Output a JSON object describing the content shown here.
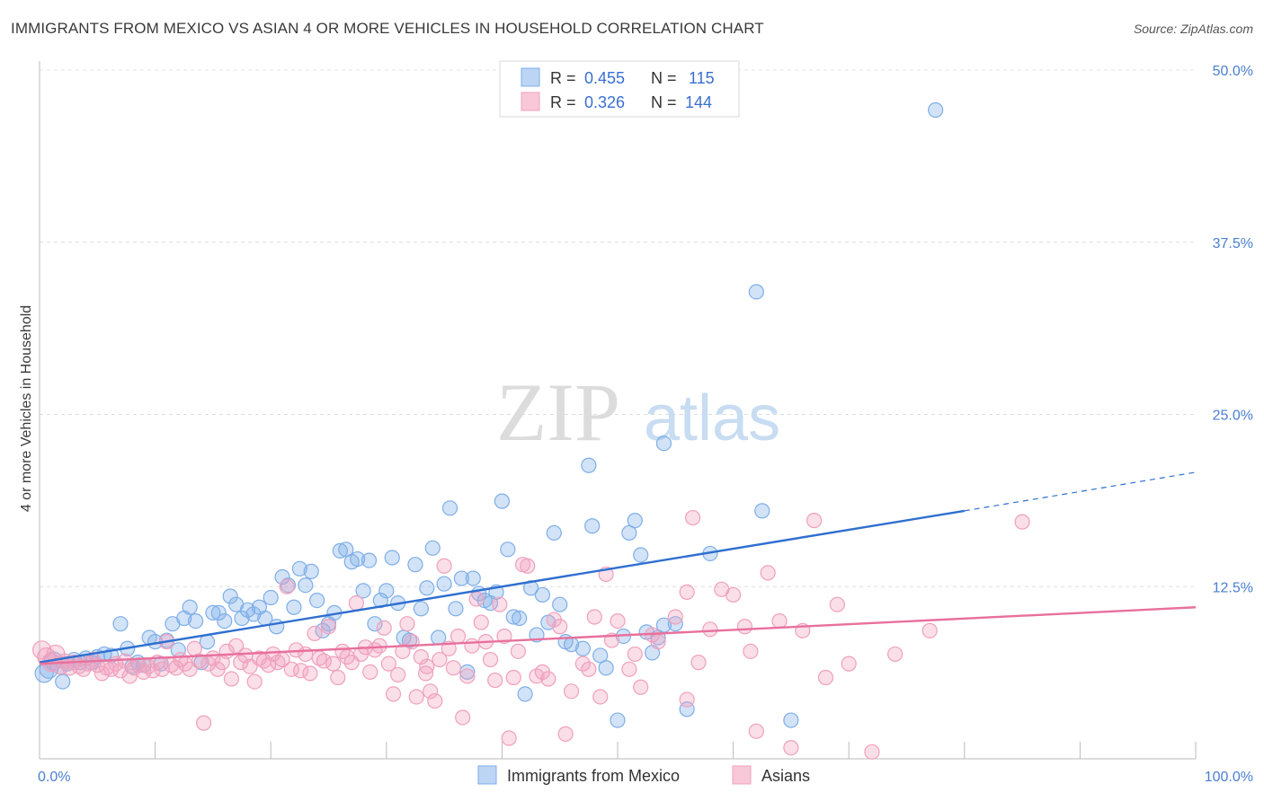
{
  "title": "IMMIGRANTS FROM MEXICO VS ASIAN 4 OR MORE VEHICLES IN HOUSEHOLD CORRELATION CHART",
  "source": "Source: ZipAtlas.com",
  "watermark": {
    "zip": "ZIP",
    "atlas": "atlas"
  },
  "legend": {
    "items": [
      {
        "r_label": "R =",
        "r_value": "0.455",
        "n_label": "N =",
        "n_value": "115",
        "color": "#7eaee8"
      },
      {
        "r_label": "R =",
        "r_value": "0.326",
        "n_label": "N =",
        "n_value": "144",
        "color": "#f0a0bc"
      }
    ]
  },
  "bottom_legend": [
    "Immigrants from Mexico",
    "Asians"
  ],
  "chart_data": {
    "type": "scatter",
    "title": "IMMIGRANTS FROM MEXICO VS ASIAN 4 OR MORE VEHICLES IN HOUSEHOLD CORRELATION CHART",
    "xlabel": "",
    "ylabel": "4 or more Vehicles in Household",
    "xlim": [
      0,
      100
    ],
    "ylim": [
      0,
      50
    ],
    "x_tick_labels": [
      "0.0%",
      "100.0%"
    ],
    "y_tick_labels": [
      "12.5%",
      "25.0%",
      "37.5%",
      "50.0%"
    ],
    "y_ticks": [
      12.5,
      25.0,
      37.5,
      50.0
    ],
    "grid": true,
    "legend_position": "top-center",
    "series": [
      {
        "name": "Immigrants from Mexico",
        "color": "#7eaee8",
        "line_color": "#2f6fd0",
        "trend": {
          "x0": 0,
          "y0": 7.0,
          "x1": 80,
          "y1": 18.0,
          "dash_x1": 100,
          "dash_y1": 20.8
        },
        "points": [
          [
            0.4,
            6.2
          ],
          [
            0.8,
            6.5
          ],
          [
            1.2,
            7.1
          ],
          [
            1.8,
            6.8
          ],
          [
            2.0,
            5.6
          ],
          [
            2.4,
            6.9
          ],
          [
            3.0,
            7.2
          ],
          [
            3.5,
            7.0
          ],
          [
            4.0,
            7.3
          ],
          [
            4.5,
            7.0
          ],
          [
            5.0,
            7.4
          ],
          [
            5.6,
            7.6
          ],
          [
            6.2,
            7.5
          ],
          [
            7.0,
            9.8
          ],
          [
            7.6,
            8.0
          ],
          [
            8.0,
            6.7
          ],
          [
            8.5,
            7.0
          ],
          [
            9.0,
            6.8
          ],
          [
            9.5,
            8.8
          ],
          [
            10.0,
            8.5
          ],
          [
            10.5,
            6.9
          ],
          [
            11.0,
            8.6
          ],
          [
            11.5,
            9.8
          ],
          [
            12.0,
            7.9
          ],
          [
            12.5,
            10.2
          ],
          [
            13.0,
            11.0
          ],
          [
            13.5,
            10.0
          ],
          [
            14.0,
            7.0
          ],
          [
            14.5,
            8.5
          ],
          [
            15.0,
            10.6
          ],
          [
            15.5,
            10.6
          ],
          [
            16.0,
            10.0
          ],
          [
            16.5,
            11.8
          ],
          [
            17.0,
            11.2
          ],
          [
            17.5,
            10.2
          ],
          [
            18.0,
            10.8
          ],
          [
            18.5,
            10.5
          ],
          [
            19.0,
            11.0
          ],
          [
            19.5,
            10.2
          ],
          [
            20.0,
            11.7
          ],
          [
            20.5,
            9.6
          ],
          [
            21.0,
            13.2
          ],
          [
            21.5,
            12.6
          ],
          [
            22.0,
            11.0
          ],
          [
            22.5,
            13.8
          ],
          [
            23.0,
            12.6
          ],
          [
            23.5,
            13.6
          ],
          [
            24.0,
            11.5
          ],
          [
            24.5,
            9.3
          ],
          [
            25.0,
            9.8
          ],
          [
            25.5,
            10.6
          ],
          [
            26.0,
            15.1
          ],
          [
            26.5,
            15.2
          ],
          [
            27.0,
            14.3
          ],
          [
            27.5,
            14.5
          ],
          [
            28.0,
            12.2
          ],
          [
            28.5,
            14.4
          ],
          [
            29.0,
            9.8
          ],
          [
            29.5,
            11.5
          ],
          [
            30.0,
            12.2
          ],
          [
            30.5,
            14.6
          ],
          [
            31.0,
            11.3
          ],
          [
            31.5,
            8.8
          ],
          [
            32.0,
            8.6
          ],
          [
            32.5,
            14.1
          ],
          [
            33.0,
            10.9
          ],
          [
            33.5,
            12.4
          ],
          [
            34.0,
            15.3
          ],
          [
            34.5,
            8.8
          ],
          [
            35.0,
            12.7
          ],
          [
            35.5,
            18.2
          ],
          [
            36.0,
            10.9
          ],
          [
            36.5,
            13.1
          ],
          [
            37.0,
            6.3
          ],
          [
            37.5,
            13.1
          ],
          [
            38.0,
            12.0
          ],
          [
            38.5,
            11.5
          ],
          [
            39.0,
            11.3
          ],
          [
            39.5,
            12.1
          ],
          [
            40.0,
            18.7
          ],
          [
            40.5,
            15.2
          ],
          [
            41.0,
            10.3
          ],
          [
            41.5,
            10.2
          ],
          [
            42.0,
            4.7
          ],
          [
            42.5,
            12.4
          ],
          [
            43.0,
            9.0
          ],
          [
            43.5,
            11.9
          ],
          [
            44.0,
            9.9
          ],
          [
            44.5,
            16.4
          ],
          [
            45.0,
            11.2
          ],
          [
            45.5,
            8.5
          ],
          [
            46.0,
            8.3
          ],
          [
            47.0,
            8.0
          ],
          [
            47.5,
            21.3
          ],
          [
            47.8,
            16.9
          ],
          [
            48.5,
            7.5
          ],
          [
            49.0,
            6.6
          ],
          [
            50.0,
            2.8
          ],
          [
            50.5,
            8.9
          ],
          [
            51.0,
            16.4
          ],
          [
            51.5,
            17.3
          ],
          [
            52.0,
            14.8
          ],
          [
            53.0,
            7.7
          ],
          [
            54.0,
            22.9
          ],
          [
            54.0,
            9.7
          ],
          [
            55.0,
            9.8
          ],
          [
            56.0,
            3.6
          ],
          [
            58.0,
            14.9
          ],
          [
            62.0,
            33.9
          ],
          [
            62.5,
            18.0
          ],
          [
            65.0,
            2.8
          ],
          [
            77.5,
            47.1
          ],
          [
            52.5,
            9.2
          ],
          [
            53.5,
            8.8
          ]
        ]
      },
      {
        "name": "Asians",
        "color": "#f0a0bc",
        "line_color": "#e8709c",
        "trend": {
          "x0": 0,
          "y0": 6.9,
          "x1": 100,
          "y1": 11.0
        },
        "points": [
          [
            0.2,
            7.9
          ],
          [
            0.6,
            7.4
          ],
          [
            1.0,
            7.0
          ],
          [
            1.4,
            7.6
          ],
          [
            1.8,
            6.8
          ],
          [
            2.2,
            7.1
          ],
          [
            2.6,
            6.6
          ],
          [
            3.0,
            7.0
          ],
          [
            3.4,
            6.7
          ],
          [
            3.8,
            6.5
          ],
          [
            4.2,
            6.9
          ],
          [
            4.6,
            7.2
          ],
          [
            5.0,
            6.8
          ],
          [
            5.4,
            6.2
          ],
          [
            5.8,
            6.6
          ],
          [
            6.2,
            6.5
          ],
          [
            6.6,
            6.9
          ],
          [
            7.0,
            6.4
          ],
          [
            7.4,
            7.1
          ],
          [
            7.8,
            6.0
          ],
          [
            8.2,
            6.6
          ],
          [
            8.6,
            6.8
          ],
          [
            9.0,
            6.3
          ],
          [
            9.4,
            6.7
          ],
          [
            9.8,
            6.4
          ],
          [
            10.2,
            7.0
          ],
          [
            10.6,
            6.5
          ],
          [
            11.0,
            8.5
          ],
          [
            11.4,
            6.8
          ],
          [
            11.8,
            6.6
          ],
          [
            12.2,
            7.2
          ],
          [
            12.6,
            6.9
          ],
          [
            13.0,
            6.5
          ],
          [
            13.4,
            8.0
          ],
          [
            13.8,
            7.1
          ],
          [
            14.2,
            2.6
          ],
          [
            14.6,
            6.9
          ],
          [
            15.0,
            7.3
          ],
          [
            15.4,
            6.5
          ],
          [
            15.8,
            7.0
          ],
          [
            16.2,
            7.8
          ],
          [
            16.6,
            5.8
          ],
          [
            17.0,
            8.2
          ],
          [
            17.4,
            7.0
          ],
          [
            17.8,
            7.5
          ],
          [
            18.2,
            6.7
          ],
          [
            18.6,
            5.6
          ],
          [
            19.0,
            7.3
          ],
          [
            19.4,
            7.1
          ],
          [
            19.8,
            6.8
          ],
          [
            20.2,
            7.6
          ],
          [
            20.6,
            7.0
          ],
          [
            21.0,
            7.2
          ],
          [
            21.4,
            12.5
          ],
          [
            21.8,
            6.5
          ],
          [
            22.2,
            7.9
          ],
          [
            22.6,
            6.4
          ],
          [
            23.0,
            7.6
          ],
          [
            23.4,
            6.2
          ],
          [
            23.8,
            9.1
          ],
          [
            24.2,
            7.3
          ],
          [
            24.6,
            7.1
          ],
          [
            25.0,
            9.6
          ],
          [
            25.4,
            6.9
          ],
          [
            25.8,
            5.9
          ],
          [
            26.2,
            7.8
          ],
          [
            26.6,
            7.4
          ],
          [
            27.0,
            7.0
          ],
          [
            27.4,
            11.3
          ],
          [
            27.8,
            7.6
          ],
          [
            28.2,
            8.1
          ],
          [
            28.6,
            6.3
          ],
          [
            29.0,
            7.9
          ],
          [
            29.4,
            8.2
          ],
          [
            29.8,
            9.5
          ],
          [
            30.2,
            6.9
          ],
          [
            30.6,
            4.7
          ],
          [
            31.0,
            6.1
          ],
          [
            31.4,
            7.8
          ],
          [
            31.8,
            9.8
          ],
          [
            32.2,
            8.5
          ],
          [
            32.6,
            4.5
          ],
          [
            33.0,
            7.4
          ],
          [
            33.4,
            6.2
          ],
          [
            33.8,
            4.9
          ],
          [
            34.2,
            4.2
          ],
          [
            34.6,
            7.2
          ],
          [
            35.0,
            14.0
          ],
          [
            35.4,
            8.0
          ],
          [
            35.8,
            6.6
          ],
          [
            36.2,
            8.9
          ],
          [
            36.6,
            3.0
          ],
          [
            37.0,
            6.0
          ],
          [
            37.4,
            8.2
          ],
          [
            37.8,
            11.6
          ],
          [
            38.2,
            9.9
          ],
          [
            38.6,
            8.5
          ],
          [
            39.0,
            7.2
          ],
          [
            39.4,
            5.7
          ],
          [
            39.8,
            11.2
          ],
          [
            40.2,
            8.9
          ],
          [
            40.6,
            1.5
          ],
          [
            41.0,
            5.9
          ],
          [
            41.4,
            7.8
          ],
          [
            41.8,
            14.1
          ],
          [
            42.2,
            14.0
          ],
          [
            43.0,
            6.0
          ],
          [
            43.5,
            6.3
          ],
          [
            44.0,
            5.8
          ],
          [
            44.5,
            10.1
          ],
          [
            45.0,
            9.6
          ],
          [
            45.5,
            1.8
          ],
          [
            46.0,
            4.9
          ],
          [
            47.0,
            6.9
          ],
          [
            47.5,
            6.5
          ],
          [
            48.0,
            10.3
          ],
          [
            48.5,
            4.5
          ],
          [
            49.0,
            13.4
          ],
          [
            49.5,
            8.6
          ],
          [
            50.0,
            10.0
          ],
          [
            51.0,
            6.5
          ],
          [
            51.5,
            7.6
          ],
          [
            52.0,
            5.2
          ],
          [
            53.0,
            9.0
          ],
          [
            53.5,
            8.5
          ],
          [
            55.0,
            10.3
          ],
          [
            56.0,
            12.1
          ],
          [
            56.5,
            17.5
          ],
          [
            57.0,
            7.0
          ],
          [
            58.0,
            9.4
          ],
          [
            59.0,
            12.3
          ],
          [
            60.0,
            11.9
          ],
          [
            61.0,
            9.6
          ],
          [
            61.5,
            7.8
          ],
          [
            62.0,
            2.0
          ],
          [
            63.0,
            13.5
          ],
          [
            64.0,
            10.0
          ],
          [
            65.0,
            0.8
          ],
          [
            66.0,
            9.3
          ],
          [
            67.0,
            17.3
          ],
          [
            68.0,
            5.9
          ],
          [
            69.0,
            11.2
          ],
          [
            70.0,
            6.9
          ],
          [
            72.0,
            0.5
          ],
          [
            74.0,
            7.6
          ],
          [
            77.0,
            9.3
          ],
          [
            85.0,
            17.2
          ],
          [
            33.5,
            6.7
          ],
          [
            56.0,
            4.3
          ]
        ]
      }
    ]
  }
}
